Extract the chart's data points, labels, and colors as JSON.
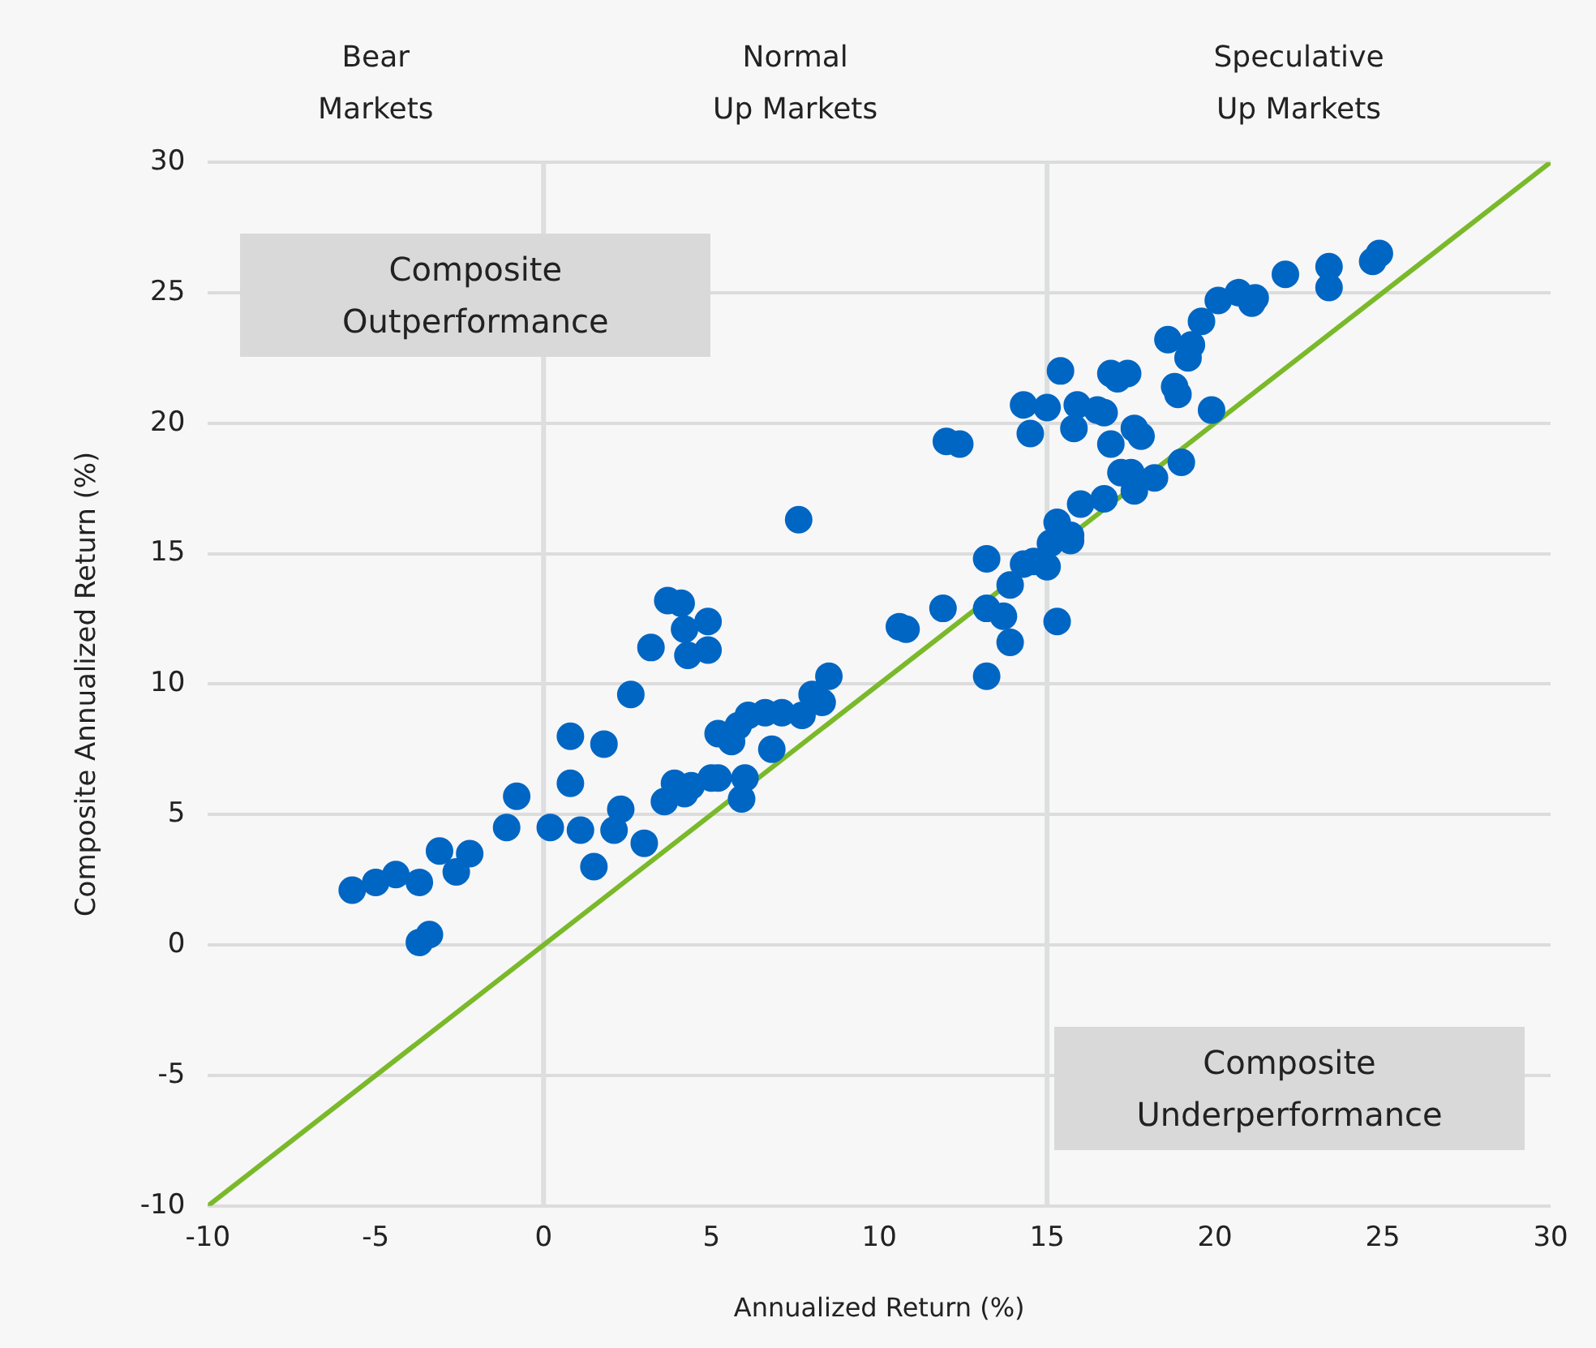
{
  "chart_data": {
    "type": "scatter",
    "xlabel": "Annualized Return (%)",
    "ylabel": "Composite Annualized Return (%)",
    "xlim": [
      -10,
      30
    ],
    "xticks": [
      -10,
      -5,
      0,
      5,
      10,
      15,
      20,
      25,
      30
    ],
    "ylim": [
      -10,
      30
    ],
    "yticks": [
      -10,
      -5,
      0,
      5,
      10,
      15,
      20,
      25,
      30
    ],
    "grid": "y",
    "legend": false,
    "marker": "circle",
    "ref_lines": [
      {
        "axis": "x",
        "value": 0,
        "color": "#dcdee0"
      },
      {
        "axis": "x",
        "value": 15,
        "color": "#dcdee0"
      }
    ],
    "annotations": [
      "Bear\nMarkets",
      "Normal\nUp Markets",
      "Speculative\nUp Markets",
      "Composite\nOutperformance",
      "Composite\nUnderperformance"
    ],
    "series": [
      {
        "color": "#0066c4",
        "x": [
          -5.7,
          -5.0,
          -4.4,
          -3.7,
          -3.7,
          -3.4,
          -3.1,
          -2.6,
          -2.2,
          -1.1,
          -0.8,
          0.2,
          0.8,
          0.8,
          1.1,
          1.5,
          1.8,
          2.1,
          2.3,
          2.6,
          3.0,
          3.2,
          3.6,
          3.7,
          4.1,
          4.2,
          4.3,
          4.9,
          4.9,
          3.9,
          4.2,
          4.4,
          5.0,
          5.2,
          5.2,
          5.6,
          5.9,
          6.0,
          5.8,
          6.1,
          6.6,
          7.1,
          6.8,
          7.6,
          7.7,
          8.0,
          8.3,
          8.5,
          10.6,
          10.8,
          12.0,
          12.4,
          11.9,
          13.2,
          13.2,
          13.2,
          13.7,
          13.9,
          13.9,
          14.3,
          14.6,
          15.0,
          15.3,
          15.1,
          15.3,
          15.7,
          15.7,
          16.0,
          16.7,
          17.2,
          17.5,
          17.6,
          18.2,
          19.0,
          14.3,
          14.5,
          15.0,
          15.4,
          15.8,
          15.9,
          16.5,
          16.7,
          16.9,
          17.6,
          17.8,
          16.9,
          17.1,
          17.4,
          18.8,
          18.9,
          18.6,
          19.3,
          19.2,
          19.6,
          19.9,
          20.1,
          20.7,
          21.2,
          21.1,
          22.1,
          23.4,
          23.4,
          24.7,
          24.9
        ],
        "values": [
          2.1,
          2.4,
          2.7,
          2.4,
          0.1,
          0.4,
          3.6,
          2.8,
          3.5,
          4.5,
          5.7,
          4.5,
          8.0,
          6.2,
          4.4,
          3.0,
          7.7,
          4.4,
          5.2,
          9.6,
          3.9,
          11.4,
          5.5,
          13.2,
          13.1,
          12.1,
          11.1,
          12.4,
          11.3,
          6.2,
          5.8,
          6.1,
          6.4,
          6.4,
          8.1,
          7.8,
          5.6,
          6.4,
          8.4,
          8.8,
          8.9,
          8.9,
          7.5,
          16.3,
          8.8,
          9.6,
          9.3,
          10.3,
          12.2,
          12.1,
          19.3,
          19.2,
          12.9,
          10.3,
          14.8,
          12.9,
          12.6,
          11.6,
          13.8,
          14.6,
          14.7,
          14.5,
          12.4,
          15.4,
          16.2,
          15.5,
          15.7,
          16.9,
          17.1,
          18.1,
          18.1,
          17.4,
          17.9,
          18.5,
          20.7,
          19.6,
          20.6,
          22.0,
          19.8,
          20.7,
          20.5,
          20.4,
          19.2,
          19.8,
          19.5,
          21.9,
          21.7,
          21.9,
          21.4,
          21.1,
          23.2,
          23.0,
          22.5,
          23.9,
          20.5,
          24.7,
          25.0,
          24.8,
          24.6,
          25.7,
          26.0,
          25.2,
          26.2,
          26.5
        ]
      },
      {
        "type": "line",
        "color": "#7ab929",
        "marker": "none",
        "x": [
          -10,
          30
        ],
        "values": [
          -10,
          30
        ]
      }
    ]
  }
}
